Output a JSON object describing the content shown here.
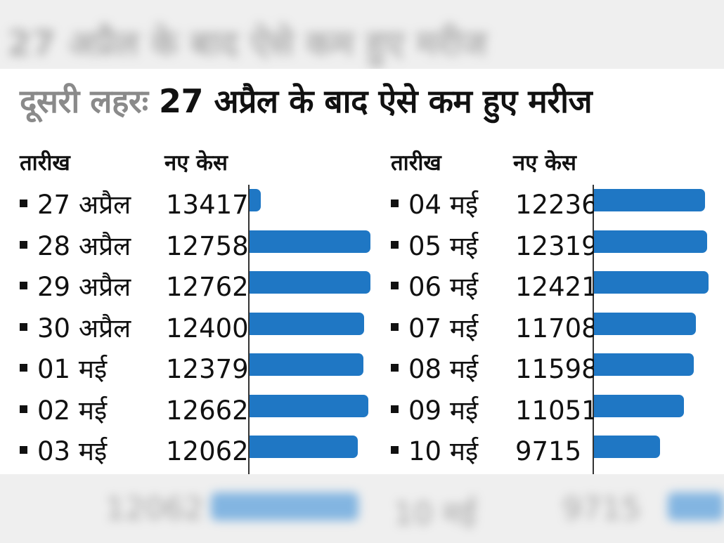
{
  "title_part1": "दूसरी लहरः",
  "title_part2": "27 अप्रैल के बाद ऐसे कम हुए मरीज",
  "headers": {
    "date": "तारीख",
    "cases": "नए केस"
  },
  "colors": {
    "bar": "#1f77c4",
    "title_muted": "#8a8a8a"
  },
  "chart_data": {
    "type": "bar",
    "orientation": "horizontal",
    "title": "दूसरी लहरः 27 अप्रैल के बाद ऐसे कम हुए मरीज",
    "xlabel": "नए केस",
    "ylabel": "तारीख",
    "categories": [
      "27 अप्रैल",
      "28 अप्रैल",
      "29 अप्रैल",
      "30 अप्रैल",
      "01 मई",
      "02 मई",
      "03 मई",
      "04 मई",
      "05 मई",
      "06 मई",
      "07 मई",
      "08 मई",
      "09 मई",
      "10 मई"
    ],
    "values": [
      13417,
      12758,
      12762,
      12400,
      12379,
      12662,
      12062,
      12236,
      12319,
      12421,
      11708,
      11598,
      11051,
      9715
    ],
    "grid": false,
    "columns": [
      {
        "rows": [
          {
            "date": "27 अप्रैल",
            "cases": 13417
          },
          {
            "date": "28 अप्रैल",
            "cases": 12758
          },
          {
            "date": "29 अप्रैल",
            "cases": 12762
          },
          {
            "date": "30 अप्रैल",
            "cases": 12400
          },
          {
            "date": "01 मई",
            "cases": 12379
          },
          {
            "date": "02 मई",
            "cases": 12662
          },
          {
            "date": "03 मई",
            "cases": 12062
          }
        ]
      },
      {
        "rows": [
          {
            "date": "04 मई",
            "cases": 12236
          },
          {
            "date": "05 मई",
            "cases": 12319
          },
          {
            "date": "06 मई",
            "cases": 12421
          },
          {
            "date": "07 मई",
            "cases": 11708
          },
          {
            "date": "08 मई",
            "cases": 11598
          },
          {
            "date": "09 मई",
            "cases": 11051
          },
          {
            "date": "10 मई",
            "cases": 9715
          }
        ]
      }
    ]
  }
}
